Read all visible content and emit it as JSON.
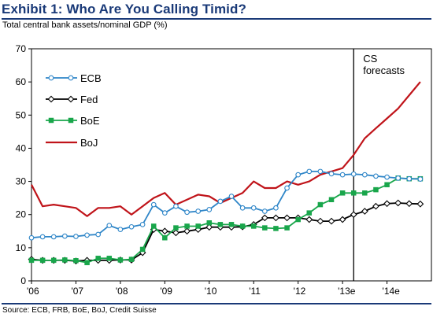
{
  "header": {
    "title": "Exhibit 1: Who Are You Calling Timid?",
    "subtitle": "Total central bank assets/nominal GDP (%)",
    "source": "Source: ECB, FRB, BoE, BoJ, Credit Suisse"
  },
  "colors": {
    "title": "#1a3a78",
    "ECB": "#2f86c8",
    "Fed": "#000000",
    "BoE": "#19a64b",
    "BoJ": "#c0141a",
    "forecast_line": "#000000"
  },
  "chart_data": {
    "type": "line",
    "title": "Exhibit 1: Who Are You Calling Timid?",
    "ylabel": "Total central bank assets/nominal GDP (%)",
    "xlabel": "",
    "x_ticks": [
      "'06",
      "'07",
      "'08",
      "'09",
      "'10",
      "'11",
      "'12",
      "'13e",
      "'14e"
    ],
    "xlim": [
      2006,
      2015
    ],
    "ylim": [
      0,
      70
    ],
    "y_ticks": [
      0,
      10,
      20,
      30,
      40,
      50,
      60,
      70
    ],
    "grid": false,
    "legend_position": "top-left",
    "annotation": {
      "text_line1": "CS",
      "text_line2": "forecasts",
      "x": 2013.25
    },
    "series": [
      {
        "name": "ECB",
        "marker": "circle-open",
        "x": [
          2006.0,
          2006.25,
          2006.5,
          2006.75,
          2007.0,
          2007.25,
          2007.5,
          2007.75,
          2008.0,
          2008.25,
          2008.5,
          2008.75,
          2009.0,
          2009.25,
          2009.5,
          2009.75,
          2010.0,
          2010.25,
          2010.5,
          2010.75,
          2011.0,
          2011.25,
          2011.5,
          2011.75,
          2012.0,
          2012.25,
          2012.5,
          2012.75,
          2013.0,
          2013.25,
          2013.5,
          2013.75,
          2014.0,
          2014.25,
          2014.5,
          2014.75
        ],
        "values": [
          13,
          13.3,
          13.3,
          13.5,
          13.4,
          13.8,
          14,
          16.7,
          15.5,
          16.3,
          17,
          23,
          20.5,
          22.5,
          20.7,
          21,
          21.5,
          24,
          25.5,
          22,
          22,
          21,
          22,
          28,
          32,
          33,
          33,
          32.3,
          32,
          32.2,
          32,
          31.6,
          31.3,
          31,
          30.8,
          30.7
        ]
      },
      {
        "name": "Fed",
        "marker": "diamond-open",
        "x": [
          2006.0,
          2006.25,
          2006.5,
          2006.75,
          2007.0,
          2007.25,
          2007.5,
          2007.75,
          2008.0,
          2008.25,
          2008.5,
          2008.75,
          2009.0,
          2009.25,
          2009.5,
          2009.75,
          2010.0,
          2010.25,
          2010.5,
          2010.75,
          2011.0,
          2011.25,
          2011.5,
          2011.75,
          2012.0,
          2012.25,
          2012.5,
          2012.75,
          2013.0,
          2013.25,
          2013.5,
          2013.75,
          2014.0,
          2014.25,
          2014.5,
          2014.75
        ],
        "values": [
          6.5,
          6.2,
          6.2,
          6.2,
          6,
          6.2,
          6.2,
          6.2,
          6.3,
          6.3,
          8.5,
          15.5,
          15,
          14.5,
          15,
          15.5,
          16.2,
          16.2,
          16.2,
          16.3,
          17,
          19,
          19,
          19,
          19,
          18.5,
          18,
          18,
          18.5,
          20,
          21,
          22.5,
          23.3,
          23.5,
          23.3,
          23.2
        ]
      },
      {
        "name": "BoE",
        "marker": "square-filled",
        "x": [
          2006.0,
          2006.25,
          2006.5,
          2006.75,
          2007.0,
          2007.25,
          2007.5,
          2007.75,
          2008.0,
          2008.25,
          2008.5,
          2008.75,
          2009.0,
          2009.25,
          2009.5,
          2009.75,
          2010.0,
          2010.25,
          2010.5,
          2010.75,
          2011.0,
          2011.25,
          2011.5,
          2011.75,
          2012.0,
          2012.25,
          2012.5,
          2012.75,
          2013.0,
          2013.25,
          2013.5,
          2013.75,
          2014.0,
          2014.25,
          2014.5,
          2014.75
        ],
        "values": [
          6.2,
          6.2,
          6.2,
          6.3,
          6.1,
          5.5,
          6.8,
          6.8,
          6.3,
          6.5,
          9.5,
          16.5,
          13,
          16,
          16.5,
          16.5,
          17.5,
          17,
          17,
          16.5,
          16.5,
          16,
          15.8,
          16,
          18.5,
          20.5,
          23,
          24.5,
          26.5,
          26.5,
          26.5,
          27.5,
          29,
          31,
          30.8,
          30.8
        ]
      },
      {
        "name": "BoJ",
        "marker": "none",
        "x": [
          2006.0,
          2006.25,
          2006.5,
          2006.75,
          2007.0,
          2007.25,
          2007.5,
          2007.75,
          2008.0,
          2008.25,
          2008.5,
          2008.75,
          2009.0,
          2009.25,
          2009.5,
          2009.75,
          2010.0,
          2010.25,
          2010.5,
          2010.75,
          2011.0,
          2011.25,
          2011.5,
          2011.75,
          2012.0,
          2012.25,
          2012.5,
          2012.75,
          2013.0,
          2013.25,
          2013.5,
          2013.75,
          2014.0,
          2014.25,
          2014.5,
          2014.75
        ],
        "values": [
          29,
          22.5,
          23,
          22.5,
          22,
          19.5,
          22,
          22,
          22.5,
          20,
          22.5,
          25,
          26.5,
          23,
          24.5,
          26,
          25.5,
          23.5,
          25,
          26.5,
          30,
          28,
          28,
          30,
          29,
          30,
          32,
          33,
          34,
          38,
          43,
          46,
          49,
          52,
          56,
          60
        ]
      }
    ]
  }
}
